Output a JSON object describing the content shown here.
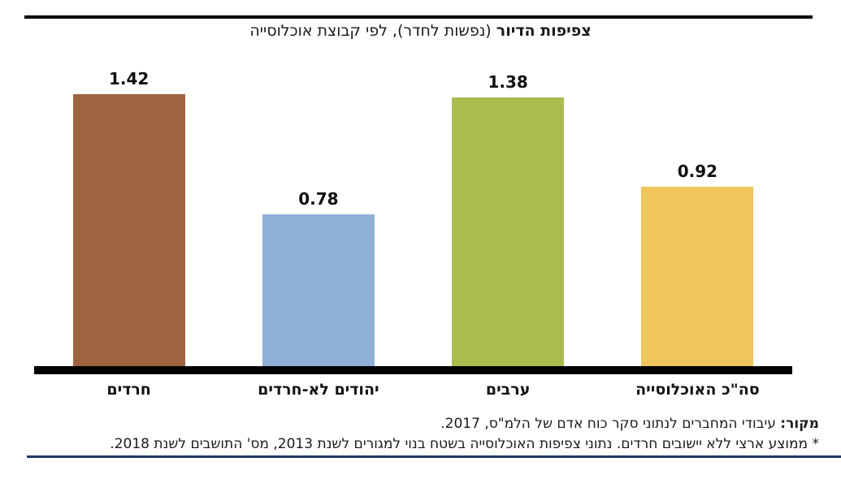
{
  "title": {
    "bold": "צפיפות הדיור",
    "rest": " (נפשות לחדר), לפי קבוצת אוכלוסייה"
  },
  "chart_data": {
    "type": "bar",
    "title": "צפיפות הדיור (נפשות לחדר), לפי קבוצת אוכלוסייה",
    "categories": [
      "חרדים",
      "יהודים לא-חרדים",
      "ערבים",
      "סה\"כ האוכלוסייה"
    ],
    "values": [
      1.42,
      0.78,
      1.38,
      0.92
    ],
    "value_labels": [
      "1.42",
      "0.78",
      "1.38",
      "0.92"
    ],
    "colors": [
      "#9E6440",
      "#8FAFD7",
      "#A9BC4C",
      "#F0C55C"
    ],
    "bar_slugs": [
      "haredim",
      "non-haredi-jews",
      "arabs",
      "total-population"
    ],
    "xlabel": "",
    "ylabel": "",
    "ylim": [
      0,
      1.5
    ],
    "grid": false,
    "legend": false,
    "value_labels_position": "above-bars"
  },
  "source": {
    "bold": "מקור:",
    "rest": " עיבודי המחברים לנתוני סקר כוח אדם של הלמ\"ס, 2017."
  },
  "footnote": "* ממוצע ארצי ללא יישובים חרדים. נתוני צפיפות האוכלוסייה בשטח בנוי למגורים לשנת 2013, מס' התושבים לשנת 2018."
}
